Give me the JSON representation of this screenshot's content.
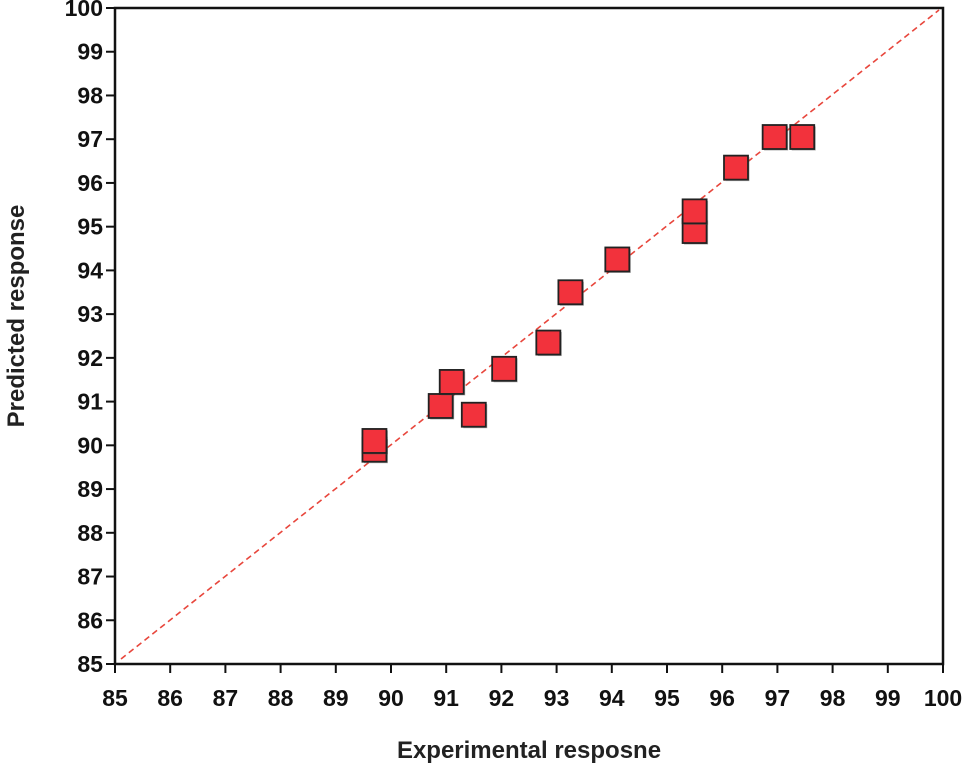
{
  "chart_data": {
    "type": "scatter",
    "title": "",
    "xlabel": "Experimental resposne",
    "ylabel": "Predicted response",
    "xlim": [
      85,
      100
    ],
    "ylim": [
      85,
      100
    ],
    "xticks": [
      "85",
      "86",
      "87",
      "88",
      "89",
      "90",
      "91",
      "92",
      "93",
      "94",
      "95",
      "96",
      "97",
      "98",
      "99",
      "100"
    ],
    "yticks": [
      "85",
      "86",
      "87",
      "88",
      "89",
      "90",
      "91",
      "92",
      "93",
      "94",
      "95",
      "96",
      "97",
      "98",
      "99",
      "100"
    ],
    "grid": false,
    "legend": "none",
    "reference_line": {
      "style": "dashed",
      "color": "#e8463c",
      "from": [
        85,
        85
      ],
      "to": [
        100,
        100
      ]
    },
    "marker": {
      "shape": "square",
      "color": "#f2323c",
      "edge_color": "#222222"
    },
    "points": [
      {
        "x": 89.7,
        "y": 89.9
      },
      {
        "x": 89.7,
        "y": 90.1
      },
      {
        "x": 90.9,
        "y": 90.9
      },
      {
        "x": 91.1,
        "y": 91.45
      },
      {
        "x": 91.5,
        "y": 90.7
      },
      {
        "x": 92.05,
        "y": 91.75
      },
      {
        "x": 92.85,
        "y": 92.35
      },
      {
        "x": 93.25,
        "y": 93.5
      },
      {
        "x": 94.1,
        "y": 94.25
      },
      {
        "x": 95.5,
        "y": 94.9
      },
      {
        "x": 95.5,
        "y": 95.35
      },
      {
        "x": 96.25,
        "y": 96.35
      },
      {
        "x": 96.95,
        "y": 97.05
      },
      {
        "x": 97.45,
        "y": 97.05
      }
    ]
  }
}
